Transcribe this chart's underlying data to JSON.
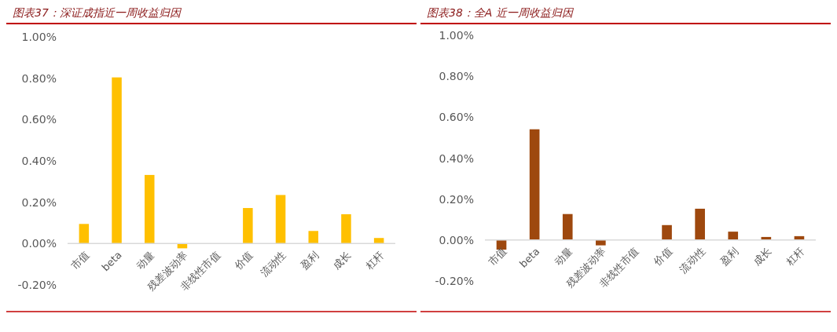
{
  "chart_data": [
    {
      "type": "bar",
      "title": "图表37：深证成指近一周收益归因",
      "categories": [
        "市值",
        "beta",
        "动量",
        "残差波动率",
        "非线性市值",
        "价值",
        "流动性",
        "盈利",
        "成长",
        "杠杆"
      ],
      "values": [
        0.095,
        0.804,
        0.332,
        -0.023,
        0,
        0.172,
        0.235,
        0.061,
        0.142,
        0.027
      ],
      "color": "#ffc000",
      "ylim": [
        -0.2,
        1.0
      ],
      "yticks": [
        {
          "value": -0.2,
          "label": "-0.20%"
        },
        {
          "value": 0,
          "label": "0.00%"
        },
        {
          "value": 0.2,
          "label": "0.20%"
        },
        {
          "value": 0.4,
          "label": "0.40%"
        },
        {
          "value": 0.6,
          "label": "0.60%"
        },
        {
          "value": 0.8,
          "label": "0.80%"
        },
        {
          "value": 1.0,
          "label": "1.00%"
        }
      ]
    },
    {
      "type": "bar",
      "title": "图表38：全A 近一周收益归因",
      "categories": [
        "市值",
        "beta",
        "动量",
        "残差波动率",
        "非线性市值",
        "价值",
        "流动性",
        "盈利",
        "成长",
        "杠杆"
      ],
      "values": [
        -0.047,
        0.541,
        0.127,
        -0.026,
        0,
        0.073,
        0.153,
        0.041,
        0.015,
        0.019
      ],
      "color": "#9e480e",
      "ylim": [
        -0.2,
        1.0
      ],
      "yticks": [
        {
          "value": -0.2,
          "label": "-0.20%"
        },
        {
          "value": 0,
          "label": "0.00%"
        },
        {
          "value": 0.2,
          "label": "0.20%"
        },
        {
          "value": 0.4,
          "label": "0.40%"
        },
        {
          "value": 0.6,
          "label": "0.60%"
        },
        {
          "value": 0.8,
          "label": "0.80%"
        },
        {
          "value": 1.0,
          "label": "1.00%"
        }
      ]
    }
  ]
}
